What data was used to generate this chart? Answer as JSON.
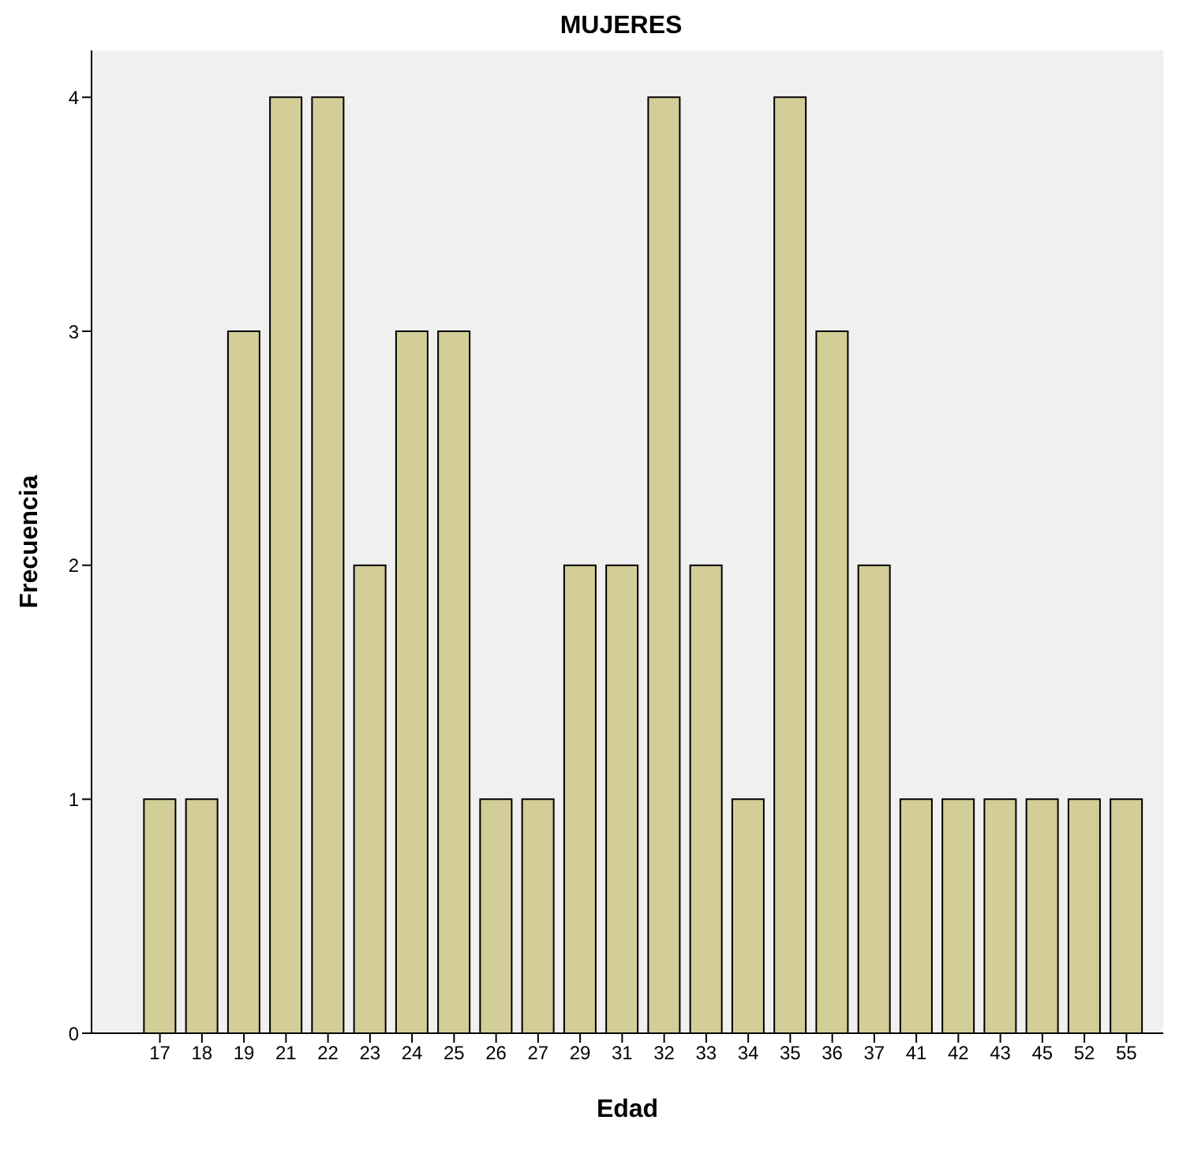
{
  "chart_data": {
    "type": "bar",
    "title": "MUJERES",
    "xlabel": "Edad",
    "ylabel": "Frecuencia",
    "categories": [
      "17",
      "18",
      "19",
      "21",
      "22",
      "23",
      "24",
      "25",
      "26",
      "27",
      "29",
      "31",
      "32",
      "33",
      "34",
      "35",
      "36",
      "37",
      "41",
      "42",
      "43",
      "45",
      "52",
      "55"
    ],
    "values": [
      1,
      1,
      3,
      4,
      4,
      2,
      3,
      3,
      1,
      1,
      2,
      2,
      4,
      2,
      1,
      4,
      3,
      2,
      1,
      1,
      1,
      1,
      1,
      1
    ],
    "color": "#d3ce97",
    "ylim": [
      0,
      4.2
    ],
    "yticks": [
      0,
      1,
      2,
      3,
      4
    ],
    "grid": false,
    "legend": false
  }
}
